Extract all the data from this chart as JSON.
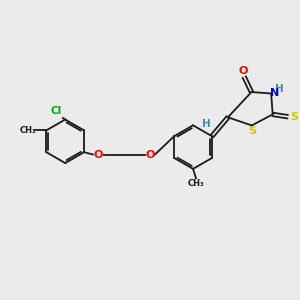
{
  "background_color": "#ebebeb",
  "bond_color": "#1a1a1a",
  "colors": {
    "O": "#ff0000",
    "N": "#0000cc",
    "S": "#cccc00",
    "Cl": "#00aa00",
    "C": "#1a1a1a",
    "H": "#4488aa"
  },
  "lw": 1.3
}
